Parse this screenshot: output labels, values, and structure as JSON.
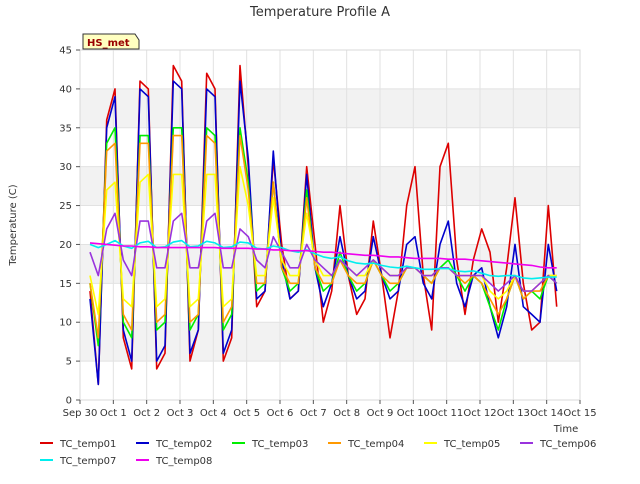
{
  "chart_data": {
    "type": "line",
    "title": "Temperature Profile A",
    "xlabel": "Time",
    "ylabel": "Temperature (C)",
    "annotation": "HS_met",
    "xlim": [
      0,
      15
    ],
    "ylim": [
      0,
      45
    ],
    "x_ticks": [
      {
        "v": 0,
        "label": "Sep 30"
      },
      {
        "v": 1,
        "label": "Oct 1"
      },
      {
        "v": 2,
        "label": "Oct 2"
      },
      {
        "v": 3,
        "label": "Oct 3"
      },
      {
        "v": 4,
        "label": "Oct 4"
      },
      {
        "v": 5,
        "label": "Oct 5"
      },
      {
        "v": 6,
        "label": "Oct 6"
      },
      {
        "v": 7,
        "label": "Oct 7"
      },
      {
        "v": 8,
        "label": "Oct 8"
      },
      {
        "v": 9,
        "label": "Oct 9"
      },
      {
        "v": 10,
        "label": "Oct 10"
      },
      {
        "v": 11,
        "label": "Oct 11"
      },
      {
        "v": 12,
        "label": "Oct 12"
      },
      {
        "v": 13,
        "label": "Oct 13"
      },
      {
        "v": 14,
        "label": "Oct 14"
      },
      {
        "v": 15,
        "label": "Oct 15"
      }
    ],
    "y_ticks": [
      0,
      5,
      10,
      15,
      20,
      25,
      30,
      35,
      40,
      45
    ],
    "grid": true,
    "legend_position": "bottom",
    "x": [
      0.3,
      0.55,
      0.8,
      1.05,
      1.3,
      1.55,
      1.8,
      2.05,
      2.3,
      2.55,
      2.8,
      3.05,
      3.3,
      3.55,
      3.8,
      4.05,
      4.3,
      4.55,
      4.8,
      5.05,
      5.3,
      5.55,
      5.8,
      6.05,
      6.3,
      6.55,
      6.8,
      7.05,
      7.3,
      7.55,
      7.8,
      8.05,
      8.3,
      8.55,
      8.8,
      9.05,
      9.3,
      9.55,
      9.8,
      10.05,
      10.3,
      10.55,
      10.8,
      11.05,
      11.3,
      11.55,
      11.8,
      12.05,
      12.3,
      12.55,
      12.8,
      13.05,
      13.3,
      13.55,
      13.8,
      14.05,
      14.3
    ],
    "series": [
      {
        "name": "TC_temp01",
        "color": "#dd0000",
        "values": [
          14,
          2,
          36,
          40,
          8,
          4,
          41,
          40,
          4,
          6,
          43,
          41,
          5,
          9,
          42,
          40,
          5,
          8,
          43,
          30,
          12,
          14,
          31,
          20,
          13,
          14,
          30,
          20,
          10,
          14,
          25,
          16,
          11,
          13,
          23,
          16,
          8,
          14,
          25,
          30,
          16,
          9,
          30,
          33,
          18,
          11,
          18,
          22,
          19,
          10,
          17,
          26,
          15,
          9,
          10,
          25,
          12
        ]
      },
      {
        "name": "TC_temp02",
        "color": "#0000cc",
        "values": [
          13,
          2,
          35,
          39,
          9,
          5,
          40,
          39,
          5,
          7,
          41,
          40,
          6,
          9,
          40,
          39,
          6,
          9,
          41,
          31,
          13,
          14,
          32,
          18,
          13,
          14,
          29,
          17,
          12,
          15,
          21,
          16,
          13,
          14,
          21,
          16,
          13,
          14,
          20,
          21,
          15,
          13,
          20,
          23,
          15,
          12,
          16,
          17,
          12,
          8,
          12,
          20,
          12,
          11,
          10,
          20,
          14
        ]
      },
      {
        "name": "TC_temp03",
        "color": "#00ee00",
        "values": [
          15,
          7,
          33,
          35,
          10,
          8,
          34,
          34,
          9,
          10,
          35,
          35,
          9,
          11,
          35,
          34,
          9,
          11,
          35,
          28,
          14,
          15,
          28,
          17,
          14,
          15,
          27,
          17,
          14,
          15,
          19,
          16,
          14,
          15,
          18,
          16,
          14,
          15,
          17,
          17,
          16,
          15,
          17,
          18,
          16,
          14,
          16,
          15,
          12,
          9,
          13,
          16,
          13,
          14,
          13,
          16,
          15
        ]
      },
      {
        "name": "TC_temp04",
        "color": "#ff9900",
        "values": [
          15,
          8,
          32,
          33,
          11,
          9,
          33,
          33,
          10,
          11,
          34,
          34,
          10,
          11,
          34,
          33,
          10,
          12,
          34,
          27,
          15,
          15,
          28,
          17,
          15,
          15,
          26,
          17,
          15,
          15,
          18,
          16,
          15,
          15,
          18,
          16,
          15,
          15,
          17,
          17,
          16,
          15,
          17,
          17,
          16,
          15,
          16,
          15,
          13,
          11,
          13,
          16,
          13,
          14,
          14,
          16,
          16
        ]
      },
      {
        "name": "TC_temp05",
        "color": "#ffff00",
        "values": [
          16,
          11,
          27,
          28,
          13,
          12,
          28,
          29,
          12,
          13,
          29,
          29,
          12,
          13,
          29,
          29,
          12,
          13,
          30,
          25,
          16,
          16,
          26,
          18,
          16,
          16,
          24,
          18,
          16,
          16,
          18,
          17,
          16,
          16,
          18,
          17,
          16,
          16,
          17,
          17,
          16,
          16,
          17,
          17,
          16,
          16,
          16,
          16,
          14,
          13,
          14,
          16,
          14,
          14,
          15,
          16,
          16
        ]
      },
      {
        "name": "TC_temp06",
        "color": "#9933dd",
        "values": [
          19,
          16,
          22,
          24,
          18,
          16,
          23,
          23,
          17,
          17,
          23,
          24,
          17,
          17,
          23,
          24,
          17,
          17,
          22,
          21,
          18,
          17,
          21,
          19,
          17,
          17,
          20,
          18,
          17,
          16,
          18,
          17,
          16,
          17,
          18,
          17,
          16,
          16,
          17,
          17,
          16,
          16,
          17,
          17,
          16,
          16,
          16,
          16,
          15,
          14,
          15,
          16,
          14,
          14,
          15,
          16,
          15
        ]
      },
      {
        "name": "TC_temp07",
        "color": "#00eeee",
        "values": [
          20,
          19.6,
          20,
          20.5,
          19.8,
          19.5,
          20.2,
          20.4,
          19.6,
          19.7,
          20.3,
          20.5,
          19.7,
          19.8,
          20.4,
          20.2,
          19.6,
          19.7,
          20.3,
          20.2,
          19.5,
          19.4,
          19.8,
          19.6,
          19.2,
          19,
          19.3,
          18.8,
          18.4,
          18.2,
          18.4,
          17.9,
          17.6,
          17.5,
          17.6,
          17.3,
          17.1,
          17,
          17.2,
          17,
          16.8,
          16.8,
          16.9,
          16.9,
          16.6,
          16.5,
          16.6,
          16.3,
          16,
          15.9,
          16,
          16,
          15.7,
          15.6,
          15.7,
          15.8,
          15.8
        ]
      },
      {
        "name": "TC_temp08",
        "color": "#ee00ee",
        "values": [
          20.2,
          20.1,
          20,
          19.9,
          19.8,
          19.8,
          19.7,
          19.7,
          19.6,
          19.6,
          19.6,
          19.6,
          19.6,
          19.6,
          19.6,
          19.6,
          19.5,
          19.5,
          19.5,
          19.5,
          19.4,
          19.4,
          19.3,
          19.3,
          19.2,
          19.2,
          19.2,
          19.1,
          19,
          19,
          18.9,
          18.8,
          18.7,
          18.6,
          18.6,
          18.5,
          18.4,
          18.4,
          18.3,
          18.2,
          18.2,
          18.2,
          18.2,
          18.1,
          18.1,
          18.1,
          18,
          17.9,
          17.8,
          17.7,
          17.6,
          17.5,
          17.4,
          17.3,
          17.1,
          17,
          17
        ]
      }
    ]
  }
}
